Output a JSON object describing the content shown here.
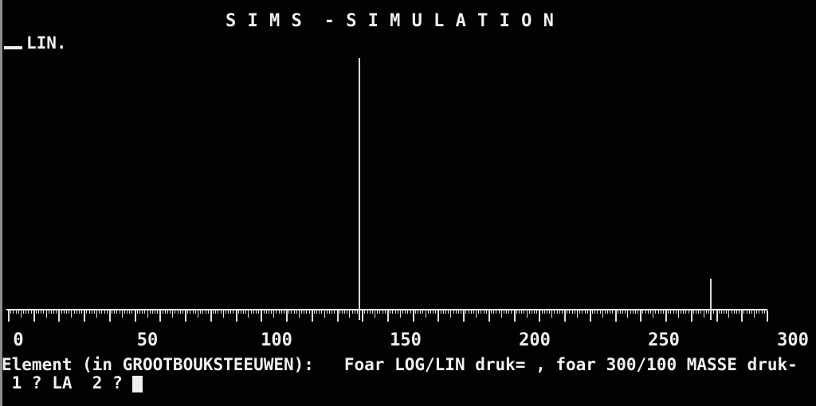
{
  "screen": {
    "title": "S I M S  - S I M U L A T I O N",
    "mode_label": "LIN.",
    "prompt_line": "Element (in GROOTBOUKSTEEUWEN):   Foar LOG/LIN druk= , foar 300/100 MASSE druk-",
    "input_line": " 1 ? LA  2 ? ",
    "cursor_visible": true
  },
  "colors": {
    "background": "#020202",
    "foreground": "#f0f0f0",
    "axis": "#e8e8e8",
    "tick": "#e0e0e0",
    "peak": "#d9d9d9",
    "edge_strip": "#8f8f8f"
  },
  "chart_data": {
    "type": "bar",
    "title": "SIMS - SIMULATION",
    "xlabel": "MASSE",
    "ylabel": "",
    "scale_mode": "LIN",
    "x_range": [
      0,
      300
    ],
    "minor_tick_step": 1,
    "medium_tick_step": 5,
    "major_tick_step": 10,
    "label_step": 50,
    "tick_labels": [
      "0",
      "50",
      "100",
      "150",
      "200",
      "250",
      "300"
    ],
    "grid": false,
    "peaks": [
      {
        "mass": 139,
        "intensity_percent": 100
      },
      {
        "mass": 278,
        "intensity_percent": 12
      }
    ]
  }
}
